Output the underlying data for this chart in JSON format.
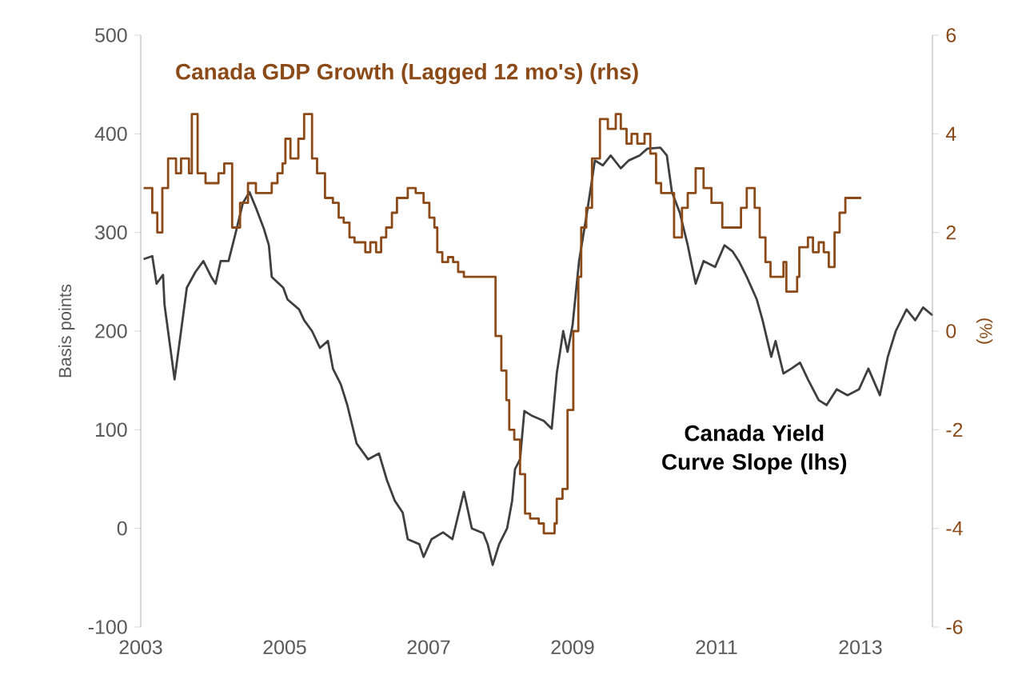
{
  "chart_data": {
    "type": "line",
    "xlim": [
      2003,
      2014
    ],
    "xticks": [
      2003,
      2005,
      2007,
      2009,
      2011,
      2013
    ],
    "ylim": [
      -100,
      500
    ],
    "yticks": [
      -100,
      0,
      100,
      200,
      300,
      400,
      500
    ],
    "y2lim": [
      -6,
      6
    ],
    "y2ticks": [
      -6,
      -4,
      -2,
      0,
      2,
      4,
      6
    ],
    "ylabel": "Basis points",
    "y2label": "(%)",
    "grid": false,
    "series": [
      {
        "name": "Canada Yield Curve Slope (lhs)",
        "color": "#3f3f3f",
        "x": [
          2003.04,
          2003.16,
          2003.22,
          2003.31,
          2003.33,
          2003.47,
          2003.56,
          2003.64,
          2003.76,
          2003.87,
          2003.98,
          2004.04,
          2004.11,
          2004.22,
          2004.31,
          2004.42,
          2004.51,
          2004.6,
          2004.71,
          2004.78,
          2004.82,
          2004.98,
          2005.04,
          2005.2,
          2005.27,
          2005.38,
          2005.49,
          2005.6,
          2005.67,
          2005.78,
          2005.87,
          2006.0,
          2006.16,
          2006.31,
          2006.42,
          2006.53,
          2006.64,
          2006.71,
          2006.87,
          2006.93,
          2007.04,
          2007.2,
          2007.33,
          2007.49,
          2007.6,
          2007.76,
          2007.82,
          2007.89,
          2007.98,
          2008.09,
          2008.16,
          2008.2,
          2008.27,
          2008.33,
          2008.44,
          2008.6,
          2008.71,
          2008.78,
          2008.87,
          2008.93,
          2009.0,
          2009.09,
          2009.2,
          2009.31,
          2009.42,
          2009.53,
          2009.67,
          2009.78,
          2009.93,
          2010.04,
          2010.22,
          2010.31,
          2010.38,
          2010.49,
          2010.6,
          2010.71,
          2010.82,
          2010.98,
          2011.11,
          2011.22,
          2011.31,
          2011.42,
          2011.56,
          2011.64,
          2011.76,
          2011.82,
          2011.93,
          2012.04,
          2012.16,
          2012.27,
          2012.42,
          2012.53,
          2012.67,
          2012.82,
          2012.98,
          2013.11,
          2013.27,
          2013.38,
          2013.49,
          2013.64,
          2013.76,
          2013.87,
          2014.0
        ],
        "values": [
          273,
          276,
          248,
          257,
          227,
          151,
          200,
          244,
          260,
          271,
          255,
          248,
          271,
          271,
          297,
          330,
          341,
          325,
          304,
          287,
          255,
          244,
          232,
          222,
          211,
          200,
          183,
          190,
          162,
          146,
          125,
          86,
          70,
          76,
          49,
          28,
          16,
          -11,
          -16,
          -29,
          -11,
          -4,
          -11,
          37,
          0,
          -5,
          -16,
          -37,
          -16,
          0,
          28,
          60,
          70,
          119,
          114,
          109,
          101,
          157,
          200,
          179,
          206,
          271,
          320,
          373,
          368,
          378,
          365,
          373,
          378,
          385,
          386,
          378,
          341,
          320,
          287,
          248,
          271,
          265,
          287,
          281,
          271,
          255,
          232,
          211,
          174,
          190,
          157,
          162,
          168,
          151,
          130,
          125,
          141,
          135,
          141,
          162,
          135,
          174,
          200,
          222,
          211,
          224,
          216
        ]
      },
      {
        "name": "Canada GDP Growth (Lagged 12 mo's) (rhs)",
        "type": "step",
        "axis": "y2",
        "color": "#8b4a17",
        "x": [
          2003.04,
          2003.16,
          2003.23,
          2003.3,
          2003.38,
          2003.49,
          2003.56,
          2003.67,
          2003.71,
          2003.79,
          2003.9,
          2004.08,
          2004.16,
          2004.27,
          2004.38,
          2004.49,
          2004.6,
          2004.82,
          2004.9,
          2004.97,
          2005.01,
          2005.08,
          2005.19,
          2005.27,
          2005.38,
          2005.45,
          2005.56,
          2005.67,
          2005.75,
          2005.82,
          2005.9,
          2005.97,
          2006.12,
          2006.19,
          2006.27,
          2006.34,
          2006.41,
          2006.49,
          2006.56,
          2006.71,
          2006.82,
          2006.93,
          2007.01,
          2007.08,
          2007.12,
          2007.19,
          2007.27,
          2007.34,
          2007.41,
          2007.49,
          2007.93,
          2008.01,
          2008.08,
          2008.12,
          2008.19,
          2008.27,
          2008.34,
          2008.41,
          2008.53,
          2008.6,
          2008.75,
          2008.78,
          2008.86,
          2008.93,
          2009.01,
          2009.08,
          2009.12,
          2009.19,
          2009.27,
          2009.38,
          2009.49,
          2009.6,
          2009.67,
          2009.75,
          2009.82,
          2009.9,
          2010.0,
          2010.08,
          2010.16,
          2010.23,
          2010.41,
          2010.52,
          2010.6,
          2010.71,
          2010.82,
          2010.93,
          2011.08,
          2011.34,
          2011.42,
          2011.53,
          2011.6,
          2011.68,
          2011.75,
          2011.93,
          2011.97,
          2012.12,
          2012.15,
          2012.27,
          2012.34,
          2012.42,
          2012.49,
          2012.56,
          2012.64,
          2012.71,
          2012.79,
          2013.01
        ],
        "values": [
          2.9,
          2.4,
          2.0,
          2.9,
          3.5,
          3.2,
          3.5,
          3.2,
          4.4,
          3.2,
          3.0,
          3.2,
          3.4,
          2.1,
          2.6,
          3.0,
          2.8,
          3.0,
          3.2,
          3.4,
          3.9,
          3.5,
          3.9,
          4.4,
          3.5,
          3.2,
          2.7,
          2.6,
          2.3,
          2.2,
          1.9,
          1.8,
          1.6,
          1.8,
          1.6,
          1.9,
          2.1,
          2.4,
          2.7,
          2.9,
          2.8,
          2.6,
          2.3,
          2.1,
          1.6,
          1.4,
          1.5,
          1.4,
          1.2,
          1.1,
          -0.1,
          -0.8,
          -1.4,
          -2.0,
          -2.2,
          -2.9,
          -3.7,
          -3.8,
          -3.9,
          -4.1,
          -3.9,
          -3.4,
          -3.2,
          -1.6,
          0.0,
          1.1,
          2.1,
          2.5,
          3.5,
          4.3,
          4.1,
          4.4,
          4.1,
          3.8,
          4.0,
          3.8,
          4.0,
          3.6,
          3.0,
          2.8,
          1.9,
          2.5,
          2.8,
          3.3,
          2.9,
          2.6,
          2.1,
          2.5,
          2.9,
          2.5,
          1.9,
          1.4,
          1.1,
          1.4,
          0.8,
          1.1,
          1.7,
          1.9,
          1.6,
          1.8,
          1.6,
          1.3,
          2.0,
          2.4,
          2.7,
          2.7
        ]
      }
    ]
  }
}
